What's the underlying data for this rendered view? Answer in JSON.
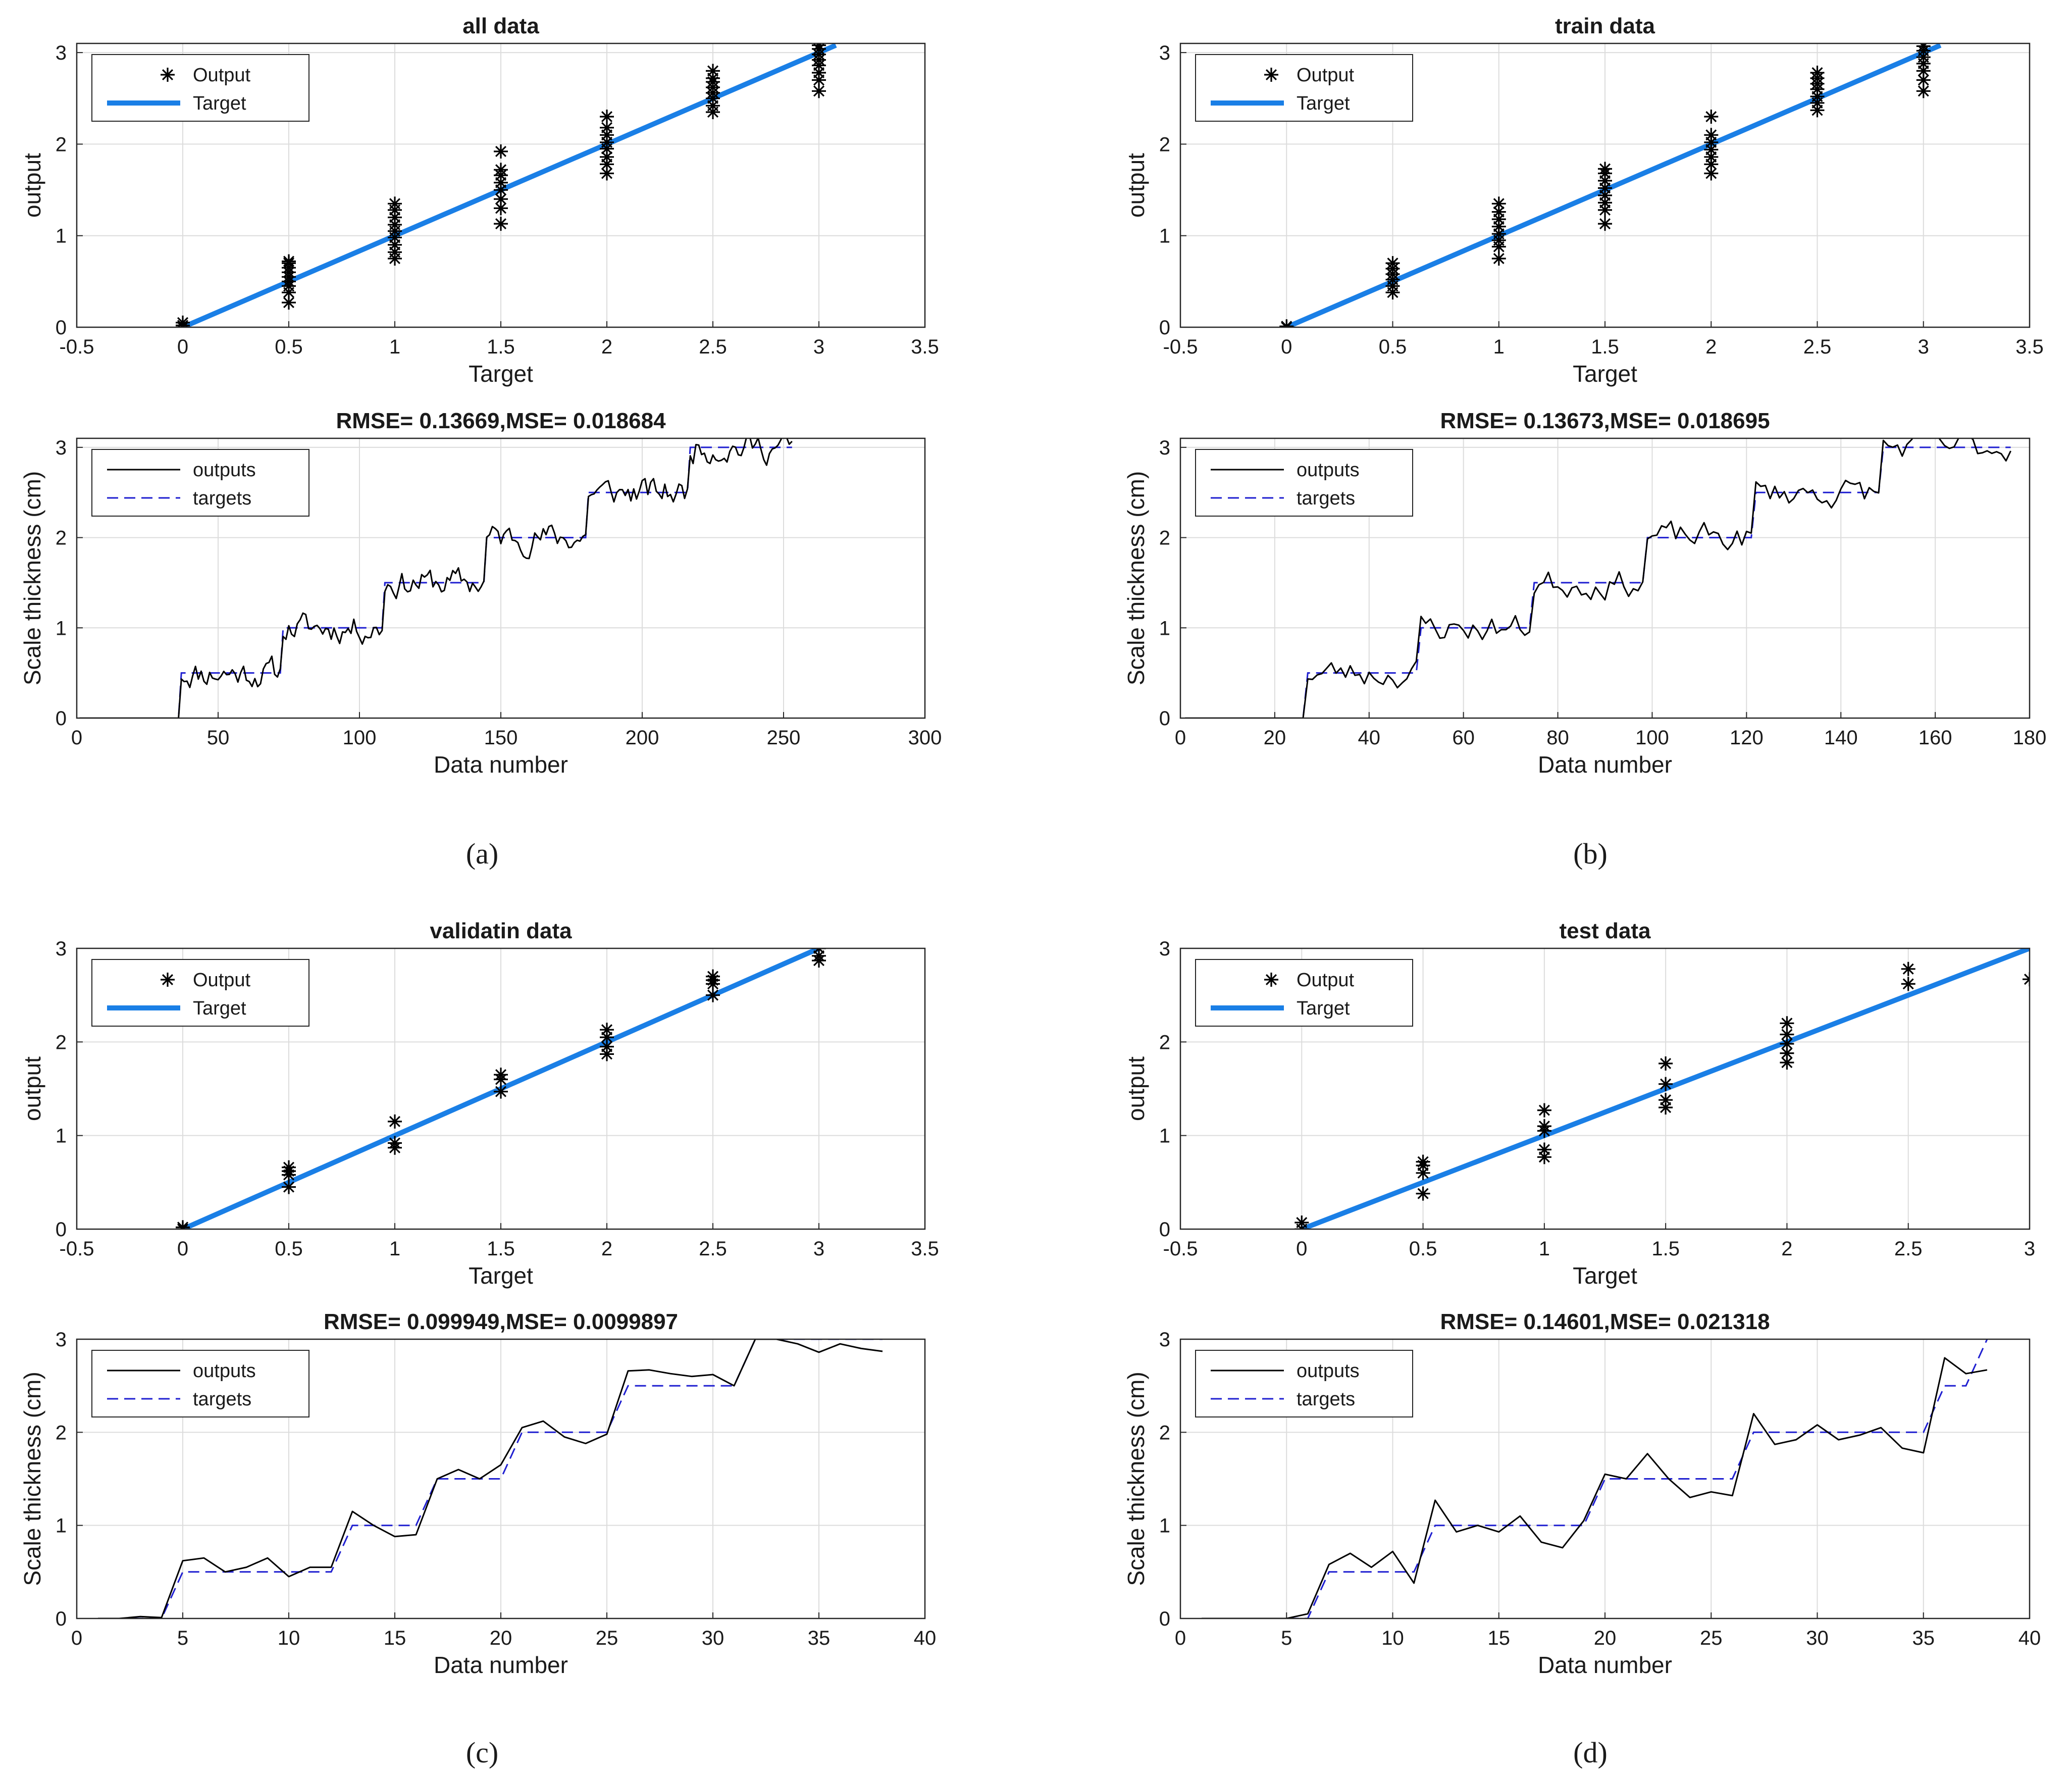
{
  "figure": {
    "captions": [
      "(a)",
      "(b)",
      "(c)",
      "(d)"
    ]
  },
  "colors": {
    "target_line": "#1a7fe6",
    "outputs_line": "#000000",
    "targets_dashed": "#1f1fd0",
    "marker": "#000000"
  },
  "chart_data": [
    {
      "id": "a-scatter",
      "type": "scatter",
      "title": "all data",
      "xlabel": "Target",
      "ylabel": "output",
      "xlim": [
        -0.5,
        3.5
      ],
      "ylim": [
        0,
        3.1
      ],
      "xticks": [
        -0.5,
        0,
        0.5,
        1,
        1.5,
        2,
        2.5,
        3,
        3.5
      ],
      "xtick_labels": [
        "-0.5",
        "0",
        "0.5",
        "1",
        "1.5",
        "2",
        "2.5",
        "3",
        "3.5"
      ],
      "yticks": [
        0,
        1,
        2,
        3
      ],
      "ytick_labels": [
        "0",
        "1",
        "2",
        "3"
      ],
      "grid": true,
      "legend": [
        "Output",
        "Target"
      ],
      "legend_position": "top-left",
      "target_line": [
        0,
        3.08
      ],
      "groups": [
        {
          "x": 0,
          "y": [
            0.0,
            0.02,
            0.05
          ]
        },
        {
          "x": 0.5,
          "y": [
            0.27,
            0.38,
            0.45,
            0.5,
            0.55,
            0.6,
            0.65,
            0.7,
            0.72
          ]
        },
        {
          "x": 1,
          "y": [
            0.75,
            0.82,
            0.9,
            0.98,
            1.05,
            1.12,
            1.2,
            1.28,
            1.35
          ]
        },
        {
          "x": 1.5,
          "y": [
            1.13,
            1.3,
            1.4,
            1.5,
            1.58,
            1.66,
            1.72,
            1.92
          ]
        },
        {
          "x": 2,
          "y": [
            1.68,
            1.78,
            1.86,
            1.95,
            2.02,
            2.1,
            2.18,
            2.3
          ]
        },
        {
          "x": 2.5,
          "y": [
            2.35,
            2.42,
            2.5,
            2.56,
            2.62,
            2.68,
            2.72,
            2.8
          ]
        },
        {
          "x": 3,
          "y": [
            2.58,
            2.7,
            2.78,
            2.86,
            2.92,
            2.98,
            3.04,
            3.08
          ]
        }
      ]
    },
    {
      "id": "b-scatter",
      "type": "scatter",
      "title": "train data",
      "xlabel": "Target",
      "ylabel": "output",
      "xlim": [
        -0.5,
        3.5
      ],
      "ylim": [
        0,
        3.1
      ],
      "xticks": [
        -0.5,
        0,
        0.5,
        1,
        1.5,
        2,
        2.5,
        3,
        3.5
      ],
      "xtick_labels": [
        "-0.5",
        "0",
        "0.5",
        "1",
        "1.5",
        "2",
        "2.5",
        "3",
        "3.5"
      ],
      "yticks": [
        0,
        1,
        2,
        3
      ],
      "ytick_labels": [
        "0",
        "1",
        "2",
        "3"
      ],
      "grid": true,
      "legend": [
        "Output",
        "Target"
      ],
      "legend_position": "top-left",
      "target_line": [
        0,
        3.08
      ],
      "groups": [
        {
          "x": 0,
          "y": [
            0.0,
            0.01
          ]
        },
        {
          "x": 0.5,
          "y": [
            0.38,
            0.45,
            0.52,
            0.58,
            0.64,
            0.7
          ]
        },
        {
          "x": 1,
          "y": [
            0.75,
            0.88,
            0.95,
            1.02,
            1.1,
            1.18,
            1.26,
            1.35
          ]
        },
        {
          "x": 1.5,
          "y": [
            1.13,
            1.28,
            1.36,
            1.44,
            1.52,
            1.6,
            1.68,
            1.73
          ]
        },
        {
          "x": 2,
          "y": [
            1.68,
            1.78,
            1.86,
            1.94,
            2.02,
            2.1,
            2.3
          ]
        },
        {
          "x": 2.5,
          "y": [
            2.37,
            2.45,
            2.52,
            2.6,
            2.66,
            2.72,
            2.78
          ]
        },
        {
          "x": 3,
          "y": [
            2.58,
            2.7,
            2.8,
            2.88,
            2.95,
            3.02,
            3.07
          ]
        }
      ]
    },
    {
      "id": "c-scatter",
      "type": "scatter",
      "title": "validatin data",
      "xlabel": "Target",
      "ylabel": "output",
      "xlim": [
        -0.5,
        3.5
      ],
      "ylim": [
        0,
        3
      ],
      "xticks": [
        -0.5,
        0,
        0.5,
        1,
        1.5,
        2,
        2.5,
        3,
        3.5
      ],
      "xtick_labels": [
        "-0.5",
        "0",
        "0.5",
        "1",
        "1.5",
        "2",
        "2.5",
        "3",
        "3.5"
      ],
      "yticks": [
        0,
        1,
        2,
        3
      ],
      "ytick_labels": [
        "0",
        "1",
        "2",
        "3"
      ],
      "grid": true,
      "legend": [
        "Output",
        "Target"
      ],
      "legend_position": "top-left",
      "target_line": [
        0,
        3.0
      ],
      "groups": [
        {
          "x": 0,
          "y": [
            0.0,
            0.02
          ]
        },
        {
          "x": 0.5,
          "y": [
            0.45,
            0.58,
            0.62,
            0.66
          ]
        },
        {
          "x": 1,
          "y": [
            0.87,
            0.92,
            1.15
          ]
        },
        {
          "x": 1.5,
          "y": [
            1.47,
            1.6,
            1.65
          ]
        },
        {
          "x": 2,
          "y": [
            1.87,
            1.95,
            2.05,
            2.13
          ]
        },
        {
          "x": 2.5,
          "y": [
            2.5,
            2.62,
            2.66,
            2.7
          ]
        },
        {
          "x": 3,
          "y": [
            2.87,
            2.92,
            3.0
          ]
        }
      ]
    },
    {
      "id": "d-scatter",
      "type": "scatter",
      "title": "test data",
      "xlabel": "Target",
      "ylabel": "output",
      "xlim": [
        -0.5,
        3
      ],
      "ylim": [
        0,
        3
      ],
      "xticks": [
        -0.5,
        0,
        0.5,
        1,
        1.5,
        2,
        2.5,
        3
      ],
      "xtick_labels": [
        "-0.5",
        "0",
        "0.5",
        "1",
        "1.5",
        "2",
        "2.5",
        "3"
      ],
      "yticks": [
        0,
        1,
        2,
        3
      ],
      "ytick_labels": [
        "0",
        "1",
        "2",
        "3"
      ],
      "grid": true,
      "legend": [
        "Output",
        "Target"
      ],
      "legend_position": "top-left",
      "target_line": [
        0,
        3.0
      ],
      "groups": [
        {
          "x": 0,
          "y": [
            0.0,
            0.07
          ]
        },
        {
          "x": 0.5,
          "y": [
            0.38,
            0.6,
            0.68,
            0.72
          ]
        },
        {
          "x": 1,
          "y": [
            0.77,
            0.85,
            1.05,
            1.1,
            1.27
          ]
        },
        {
          "x": 1.5,
          "y": [
            1.3,
            1.38,
            1.55,
            1.77
          ]
        },
        {
          "x": 2,
          "y": [
            1.78,
            1.88,
            1.98,
            2.08,
            2.2
          ]
        },
        {
          "x": 2.5,
          "y": [
            2.62,
            2.78
          ]
        },
        {
          "x": 3,
          "y": [
            2.67
          ]
        }
      ]
    },
    {
      "id": "a-series",
      "type": "line",
      "title": "RMSE= 0.13669,MSE= 0.018684",
      "xlabel": "Data number",
      "ylabel": "Scale thickness (cm)",
      "xlim": [
        0,
        300
      ],
      "ylim": [
        0,
        3.1
      ],
      "xticks": [
        0,
        50,
        100,
        150,
        200,
        250,
        300
      ],
      "xtick_labels": [
        "0",
        "50",
        "100",
        "150",
        "200",
        "250",
        "300"
      ],
      "yticks": [
        0,
        1,
        2,
        3
      ],
      "ytick_labels": [
        "0",
        "1",
        "2",
        "3"
      ],
      "grid": true,
      "legend": [
        "outputs",
        "targets"
      ],
      "legend_position": "top-left",
      "n": 253,
      "seed": 11,
      "noise": 0.13,
      "steps": [
        {
          "start": 1,
          "end": 36,
          "value": 0
        },
        {
          "start": 37,
          "end": 72,
          "value": 0.5
        },
        {
          "start": 73,
          "end": 108,
          "value": 1
        },
        {
          "start": 109,
          "end": 144,
          "value": 1.5
        },
        {
          "start": 145,
          "end": 180,
          "value": 2
        },
        {
          "start": 181,
          "end": 216,
          "value": 2.5
        },
        {
          "start": 217,
          "end": 253,
          "value": 3
        }
      ]
    },
    {
      "id": "b-series",
      "type": "line",
      "title": "RMSE= 0.13673,MSE= 0.018695",
      "xlabel": "Data number",
      "ylabel": "Scale thickness (cm)",
      "xlim": [
        0,
        180
      ],
      "ylim": [
        0,
        3.1
      ],
      "xticks": [
        0,
        20,
        40,
        60,
        80,
        100,
        120,
        140,
        160,
        180
      ],
      "xtick_labels": [
        "0",
        "20",
        "40",
        "60",
        "80",
        "100",
        "120",
        "140",
        "160",
        "180"
      ],
      "yticks": [
        0,
        1,
        2,
        3
      ],
      "ytick_labels": [
        "0",
        "1",
        "2",
        "3"
      ],
      "grid": true,
      "legend": [
        "outputs",
        "targets"
      ],
      "legend_position": "top-left",
      "n": 176,
      "seed": 23,
      "noise": 0.13,
      "steps": [
        {
          "start": 1,
          "end": 26,
          "value": 0
        },
        {
          "start": 27,
          "end": 50,
          "value": 0.5
        },
        {
          "start": 51,
          "end": 74,
          "value": 1
        },
        {
          "start": 75,
          "end": 98,
          "value": 1.5
        },
        {
          "start": 99,
          "end": 121,
          "value": 2
        },
        {
          "start": 122,
          "end": 148,
          "value": 2.5
        },
        {
          "start": 149,
          "end": 176,
          "value": 3
        }
      ]
    },
    {
      "id": "c-series",
      "type": "line",
      "title": "RMSE= 0.099949,MSE= 0.0099897",
      "xlabel": "Data number",
      "ylabel": "Scale thickness (cm)",
      "xlim": [
        0,
        40
      ],
      "ylim": [
        0,
        3
      ],
      "xticks": [
        0,
        5,
        10,
        15,
        20,
        25,
        30,
        35,
        40
      ],
      "xtick_labels": [
        "0",
        "5",
        "10",
        "15",
        "20",
        "25",
        "30",
        "35",
        "40"
      ],
      "yticks": [
        0,
        1,
        2,
        3
      ],
      "ytick_labels": [
        "0",
        "1",
        "2",
        "3"
      ],
      "grid": true,
      "legend": [
        "outputs",
        "targets"
      ],
      "legend_position": "top-left",
      "x": [
        1,
        2,
        3,
        4,
        5,
        6,
        7,
        8,
        9,
        10,
        11,
        12,
        13,
        14,
        15,
        16,
        17,
        18,
        19,
        20,
        21,
        22,
        23,
        24,
        25,
        26,
        27,
        28,
        29,
        30,
        31,
        32,
        33,
        34,
        35,
        36,
        37,
        38
      ],
      "outputs": [
        0,
        0,
        0.02,
        0.01,
        0.62,
        0.65,
        0.5,
        0.55,
        0.65,
        0.45,
        0.55,
        0.55,
        1.15,
        1.0,
        0.88,
        0.9,
        1.5,
        1.6,
        1.5,
        1.65,
        2.05,
        2.12,
        1.95,
        1.88,
        1.98,
        2.66,
        2.67,
        2.63,
        2.6,
        2.62,
        2.5,
        3.0,
        3.0,
        2.95,
        2.86,
        2.95,
        2.9,
        2.87
      ],
      "targets": [
        0,
        0,
        0,
        0,
        0.5,
        0.5,
        0.5,
        0.5,
        0.5,
        0.5,
        0.5,
        0.5,
        1,
        1,
        1,
        1,
        1.5,
        1.5,
        1.5,
        1.5,
        2,
        2,
        2,
        2,
        2,
        2.5,
        2.5,
        2.5,
        2.5,
        2.5,
        2.5,
        3,
        3,
        3,
        3,
        3,
        3,
        3
      ]
    },
    {
      "id": "d-series",
      "type": "line",
      "title": "RMSE= 0.14601,MSE= 0.021318",
      "xlabel": "Data number",
      "ylabel": "Scale thickness (cm)",
      "xlim": [
        0,
        40
      ],
      "ylim": [
        0,
        3
      ],
      "xticks": [
        0,
        5,
        10,
        15,
        20,
        25,
        30,
        35,
        40
      ],
      "xtick_labels": [
        "0",
        "5",
        "10",
        "15",
        "20",
        "25",
        "30",
        "35",
        "40"
      ],
      "yticks": [
        0,
        1,
        2,
        3
      ],
      "ytick_labels": [
        "0",
        "1",
        "2",
        "3"
      ],
      "grid": true,
      "legend": [
        "outputs",
        "targets"
      ],
      "legend_position": "top-left",
      "x": [
        1,
        2,
        3,
        4,
        5,
        6,
        7,
        8,
        9,
        10,
        11,
        12,
        13,
        14,
        15,
        16,
        17,
        18,
        19,
        20,
        21,
        22,
        23,
        24,
        25,
        26,
        27,
        28,
        29,
        30,
        31,
        32,
        33,
        34,
        35,
        36,
        37,
        38
      ],
      "outputs": [
        0,
        0,
        0,
        0,
        0,
        0.05,
        0.58,
        0.7,
        0.55,
        0.72,
        0.38,
        1.27,
        0.93,
        1.0,
        0.93,
        1.1,
        0.82,
        0.76,
        1.05,
        1.55,
        1.5,
        1.77,
        1.5,
        1.3,
        1.36,
        1.32,
        2.2,
        1.87,
        1.92,
        2.08,
        1.92,
        1.97,
        2.05,
        1.83,
        1.78,
        2.8,
        2.63,
        2.67
      ],
      "targets": [
        0,
        0,
        0,
        0,
        0,
        0,
        0.5,
        0.5,
        0.5,
        0.5,
        0.5,
        1,
        1,
        1,
        1,
        1,
        1,
        1,
        1,
        1.5,
        1.5,
        1.5,
        1.5,
        1.5,
        1.5,
        1.5,
        2,
        2,
        2,
        2,
        2,
        2,
        2,
        2,
        2,
        2.5,
        2.5,
        3
      ]
    }
  ]
}
